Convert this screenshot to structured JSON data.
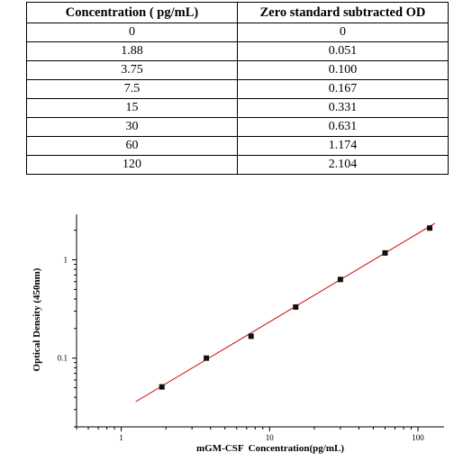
{
  "table": {
    "headers": [
      "Concentration ( pg/mL)",
      "Zero standard subtracted OD"
    ],
    "rows": [
      [
        "0",
        "0"
      ],
      [
        "1.88",
        "0.051"
      ],
      [
        "3.75",
        "0.100"
      ],
      [
        "7.5",
        "0.167"
      ],
      [
        "15",
        "0.331"
      ],
      [
        "30",
        "0.631"
      ],
      [
        "60",
        "1.174"
      ],
      [
        "120",
        "2.104"
      ]
    ]
  },
  "chart_data": {
    "type": "scatter",
    "xlabel": "mGM-CSF  Concentration(pg/mL)",
    "ylabel": "Optical Density (450nm)",
    "x_scale": "log",
    "y_scale": "log",
    "xlim": [
      0.5,
      150
    ],
    "ylim": [
      0.02,
      2.9
    ],
    "x_ticks": [
      1,
      10,
      100
    ],
    "x_tick_labels": [
      "1",
      "10",
      "100"
    ],
    "y_ticks": [
      0.1,
      1
    ],
    "y_tick_labels": [
      "0.1",
      "1"
    ],
    "grid": false,
    "points": {
      "x": [
        1.88,
        3.75,
        7.5,
        15,
        30,
        60,
        120
      ],
      "y": [
        0.051,
        0.1,
        0.167,
        0.331,
        0.631,
        1.174,
        2.104
      ]
    },
    "fit_line": {
      "x": [
        1.25,
        130
      ],
      "y": [
        0.036,
        2.35
      ]
    },
    "colors": {
      "points": "#111111",
      "fit_line": "#cc0000",
      "axes": "#000000"
    }
  }
}
